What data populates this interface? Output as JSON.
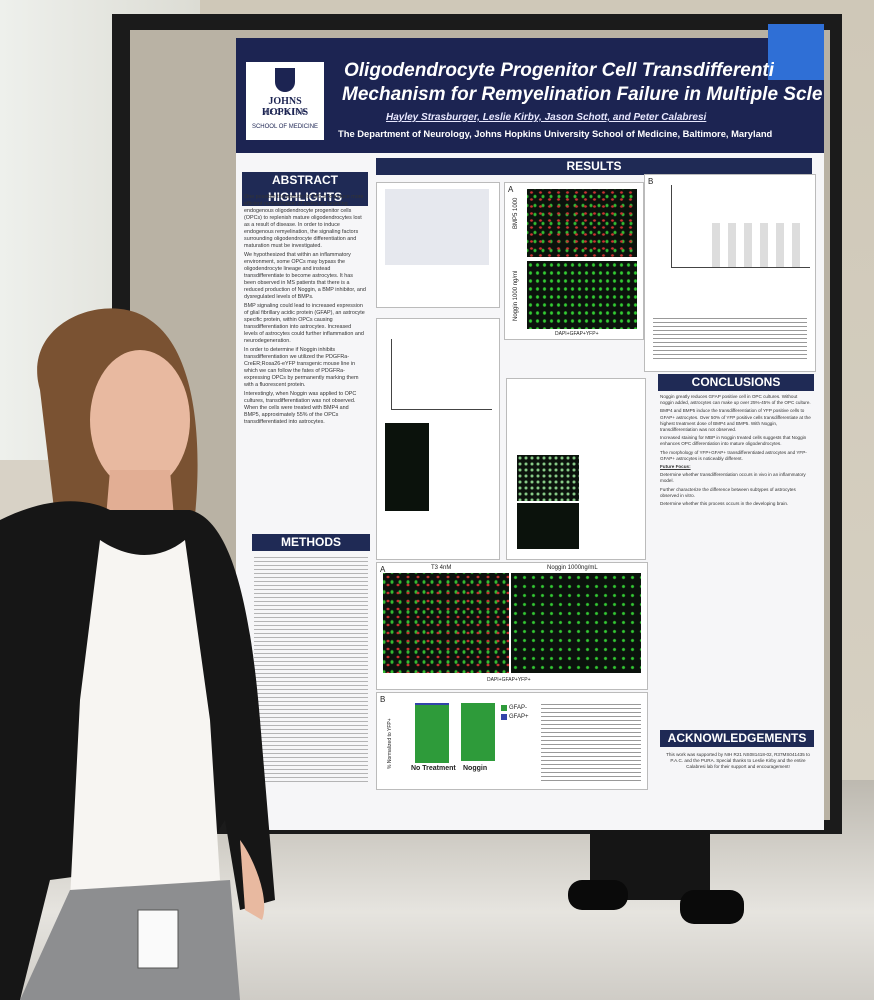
{
  "poster": {
    "header": {
      "title_line1": "Oligodendrocyte Progenitor Cell Transdifferentiation",
      "title_line2": "Mechanism for Remyelination Failure in Multiple Scle",
      "authors": "Hayley Strasburger, Leslie Kirby, Jason Schott, and Peter Calabresi",
      "department": "The Department of Neurology, Johns Hopkins University School of Medicine, Baltimore, Maryland",
      "logo": {
        "name": "JOHNS HOPKINS",
        "sub": "MEDICINE",
        "school": "SCHOOL OF MEDICINE"
      }
    },
    "abstract": {
      "heading": "ABSTRACT HIGHLIGHTS",
      "bullets": [
        "One possible therapeutic for MS is to induce more efficient remyelination of axons by targeting endogenous oligodendrocyte progenitor cells (OPCs) to replenish mature oligodendrocytes lost as a result of disease. In order to induce endogenous remyelination, the signaling factors surrounding oligodendrocyte differentiation and maturation must be investigated.",
        "We hypothesized that within an inflammatory environment, some OPCs may bypass the oligodendrocyte lineage and instead transdifferentiate to become astrocytes. It has been observed in MS patients that there is a reduced production of Noggin, a BMP inhibitor, and dysregulated levels of BMPs.",
        "BMP signaling could lead to increased expression of glial fibrillary acidic protein (GFAP), an astrocyte specific protein, within OPCs causing transdifferentiation into astrocytes. Increased levels of astrocytes could further inflammation and neurodegeneration.",
        "In order to determine if Noggin inhibits transdifferentiation we utilized the PDGFRa-CreER;Rosa26-eYFP transgenic mouse line in which we can follow the fates of PDGFRa-expressing OPCs by permanently marking them with a fluorescent protein.",
        "Interestingly, when Noggin was applied to OPC cultures, transdifferentiation was not observed. When the cells were treated with BMP4 and BMP5, approximately 55% of the OPCs transdifferentiated into astrocytes."
      ]
    },
    "methods": {
      "heading": "METHODS"
    },
    "results": {
      "heading": "RESULTS",
      "panel_a": "A",
      "panel_b": "B",
      "row1": "BMP5 1000",
      "row2": "Noggin 1000 ng/ml",
      "stain": "DAPI+GFAP+YFP+",
      "t3": "T3 4nM",
      "noggin": "Noggin 1000ng/mL",
      "y_label": "% Normalized to YFP+",
      "legend": [
        "GFAP-",
        "GFAP+"
      ],
      "cats": [
        "No Treatment",
        "Noggin"
      ]
    },
    "conclusions": {
      "heading": "CONCLUSIONS",
      "bullets": [
        "Noggin greatly reduces GFAP positive cell in OPC cultures. Without noggin added, astrocytes can make up over 25%-45% of the OPC culture.",
        "BMP4 and BMP5 induce the transdifferentiation of YFP positive cells to GFAP+ astrocytes. Over 50% of YFP positive cells transdifferentiate at the highest treatment dose of BMP4 and BMP5. With Noggin, transdifferentiation was not observed.",
        "Increased staining for MBP in Noggin treated cells suggests that Noggin enhances OPC differentiation into mature oligodendrocytes.",
        "The morphology of YFP+GFAP+ transdifferentiated astrocytes and YFP-GFAP+ astrocytes is noticeably different."
      ],
      "future": "Future Focus:",
      "future_bullets": [
        "Determine whether transdifferentiation occurs in vivo in an inflammatory model.",
        "Further characterize the difference between subtypes of astrocytes observed in vitro.",
        "Determine whether this process occurs in the developing brain."
      ]
    },
    "acknowledgements": {
      "heading": "ACKNOWLEDGEMENTS",
      "text": "This work was supported by NIH R21 NS081418-02, R37MS041435 to P.A.C. and the PURA. Special thanks to Leslie Kirby and the entire Calabresi lab for their support and encouragement!"
    }
  }
}
